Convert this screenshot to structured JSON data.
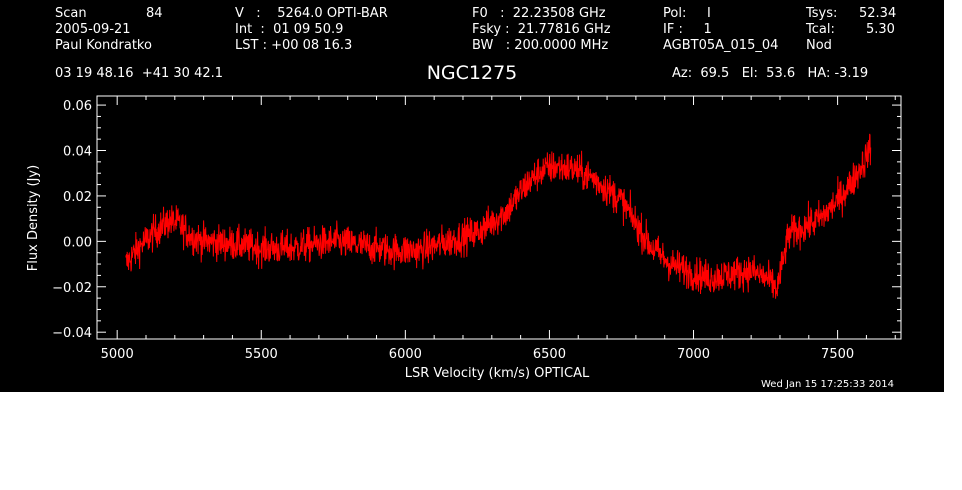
{
  "header": {
    "scan_label": "Scan",
    "scan_value": "84",
    "date": "2005-09-21",
    "observer": "Paul Kondratko",
    "v_line": "V   :    5264.0 OPTI-BAR",
    "int_line": "Int  :  01 09 50.9",
    "lst_line": "LST : +00 08 16.3",
    "f0_line": "F0   :  22.23508 GHz",
    "fsky_line": "Fsky :  21.77816 GHz",
    "bw_line": "BW   : 200.0000 MHz",
    "pol_line": "Pol:     I",
    "if_line": "IF :     1",
    "project": "AGBT05A_015_04",
    "tsys_label": "Tsys:",
    "tsys_value": "52.34",
    "tcal_label": "Tcal:",
    "tcal_value": "5.30",
    "procedure": "Nod",
    "coords": "03 19 48.16  +41 30 42.1",
    "source": "NGC1275",
    "azelha": "Az:  69.5   El:  53.6   HA: -3.19",
    "timestamp": "Wed Jan 15 17:25:33 2014"
  },
  "chart_data": {
    "type": "line",
    "title": "NGC1275",
    "xlabel": "LSR Velocity (km/s) OPTICAL",
    "ylabel": "Flux Density (Jy)",
    "xlim": [
      4930,
      7720
    ],
    "ylim": [
      -0.043,
      0.064
    ],
    "x_ticks": [
      5000,
      5500,
      6000,
      6500,
      7000,
      7500
    ],
    "x_tick_labels": [
      "5000",
      "5500",
      "6000",
      "6500",
      "7000",
      "7500"
    ],
    "y_ticks": [
      -0.04,
      -0.02,
      0.0,
      0.02,
      0.04,
      0.06
    ],
    "y_tick_labels": [
      "−0.04",
      "−0.02",
      "0.00",
      "0.02",
      "0.04",
      "0.06"
    ],
    "series": [
      {
        "color": "#ff0000",
        "x_range": [
          5030,
          7615
        ],
        "noise_rms": 0.0038,
        "x": [
          5030,
          5080,
          5130,
          5180,
          5210,
          5260,
          5300,
          5400,
          5500,
          5600,
          5700,
          5760,
          5850,
          5950,
          6050,
          6150,
          6250,
          6350,
          6420,
          6470,
          6520,
          6580,
          6650,
          6750,
          6850,
          6920,
          7000,
          7050,
          7100,
          7150,
          7200,
          7250,
          7290,
          7330,
          7380,
          7450,
          7500,
          7550,
          7600,
          7615
        ],
        "y": [
          -0.01,
          -0.002,
          0.004,
          0.009,
          0.008,
          0.002,
          0.0,
          -0.001,
          -0.003,
          -0.003,
          -0.001,
          0.0,
          -0.002,
          -0.004,
          -0.004,
          0.0,
          0.004,
          0.013,
          0.025,
          0.031,
          0.033,
          0.032,
          0.028,
          0.018,
          -0.002,
          -0.01,
          -0.014,
          -0.016,
          -0.015,
          -0.014,
          -0.013,
          -0.016,
          -0.021,
          0.003,
          0.006,
          0.011,
          0.018,
          0.026,
          0.037,
          0.042
        ]
      }
    ]
  }
}
